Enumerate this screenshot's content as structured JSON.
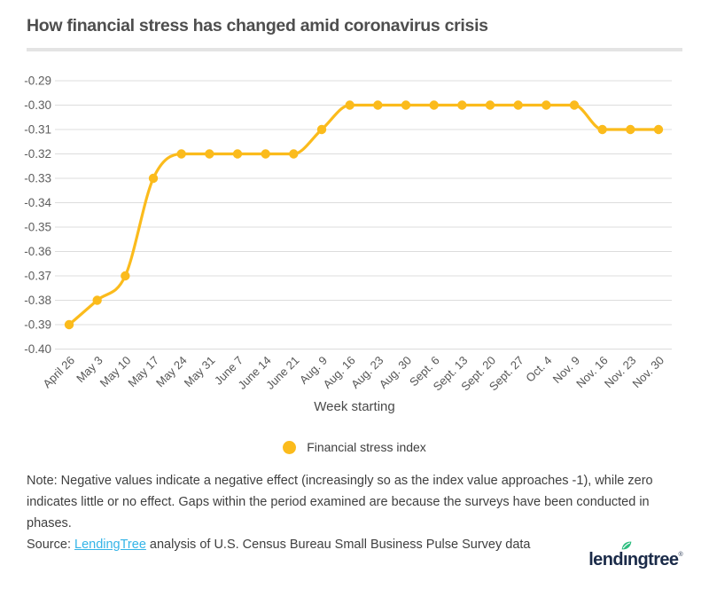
{
  "title": "How financial stress has changed amid coronavirus crisis",
  "chart_data": {
    "type": "line",
    "title": "How financial stress has changed amid coronavirus crisis",
    "categories": [
      "April 26",
      "May 3",
      "May 10",
      "May 17",
      "May 24",
      "May 31",
      "June 7",
      "June 14",
      "June 21",
      "Aug. 9",
      "Aug. 16",
      "Aug. 23",
      "Aug. 30",
      "Sept. 6",
      "Sept. 13",
      "Sept. 20",
      "Sept. 27",
      "Oct. 4",
      "Nov. 9",
      "Nov. 16",
      "Nov. 23",
      "Nov. 30"
    ],
    "series": [
      {
        "name": "Financial stress index",
        "color": "#FBBB1C",
        "values": [
          -0.39,
          -0.38,
          -0.37,
          -0.33,
          -0.32,
          -0.32,
          -0.32,
          -0.32,
          -0.32,
          -0.31,
          -0.3,
          -0.3,
          -0.3,
          -0.3,
          -0.3,
          -0.3,
          -0.3,
          -0.3,
          -0.3,
          -0.31,
          -0.31,
          -0.31
        ]
      }
    ],
    "xlabel": "Week starting",
    "ylabel": "",
    "ylim": [
      -0.4,
      -0.29
    ],
    "ytick_step": 0.01,
    "ytick_labels": [
      "-0.29",
      "-0.30",
      "-0.31",
      "-0.32",
      "-0.33",
      "-0.34",
      "-0.35",
      "-0.36",
      "-0.37",
      "-0.38",
      "-0.39",
      "-0.40"
    ],
    "grid": true,
    "legend_position": "bottom",
    "marker": "circle"
  },
  "axis": {
    "x_title": "Week starting"
  },
  "legend": {
    "items": [
      {
        "label": "Financial stress index",
        "color": "#FBBB1C"
      }
    ]
  },
  "footer": {
    "note": "Note: Negative values indicate a negative effect (increasingly so as the index value approaches -1), while zero indicates little or no effect. Gaps within the period examined are because the surveys have been conducted in phases.",
    "source_prefix": "Source: ",
    "source_link": "LendingTree",
    "source_suffix": " analysis of U.S. Census Bureau Small Business Pulse Survey data"
  },
  "logo": {
    "text_before_leaf": "lend",
    "leaf_letter": "ı",
    "text_after_leaf": "ngtree",
    "registered_mark": "®"
  },
  "colors": {
    "series_yellow": "#FBBB1C",
    "gridline": "#dcdcdc",
    "tick_text": "#5e5e5e",
    "title_text": "#4e4e4e",
    "note_text": "#3f3f3f",
    "link_blue": "#35B4E7",
    "logo_navy": "#1b2b49",
    "logo_green": "#2BBD7E"
  }
}
